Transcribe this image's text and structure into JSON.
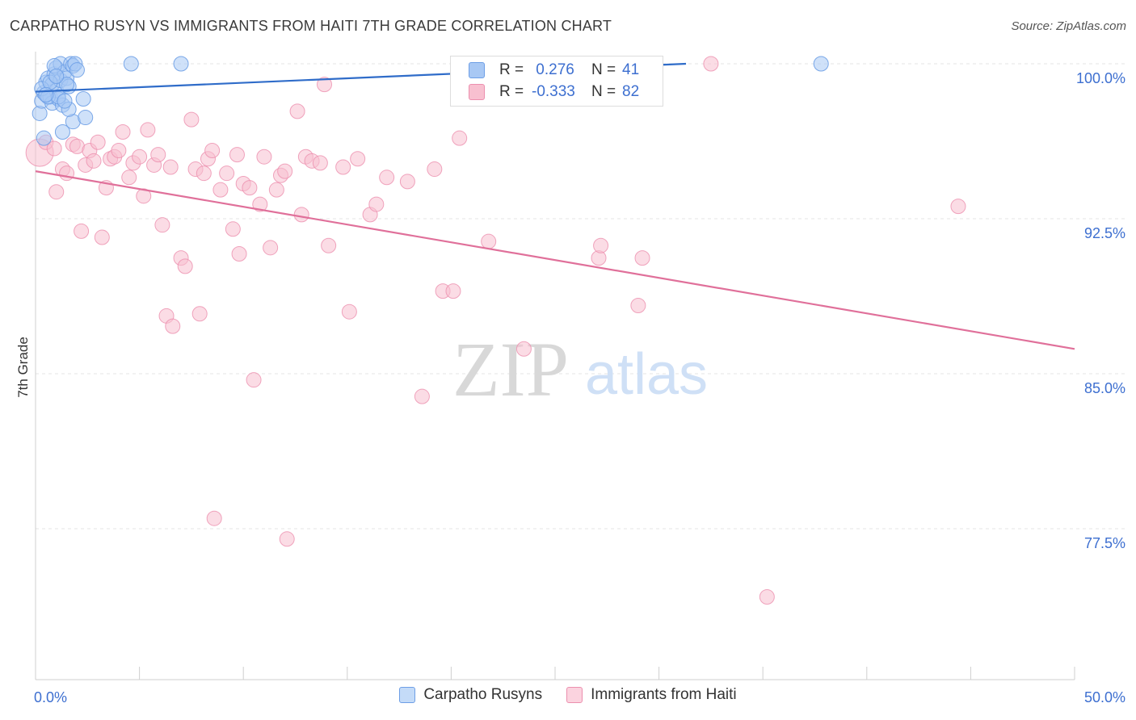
{
  "title": "CARPATHO RUSYN VS IMMIGRANTS FROM HAITI 7TH GRADE CORRELATION CHART",
  "source": "Source: ZipAtlas.com",
  "watermark": {
    "zip": "ZIP",
    "atlas": "atlas"
  },
  "legend": {
    "r_label": "R =",
    "n_label": "N =",
    "rows": [
      {
        "r": " 0.276",
        "n": "41"
      },
      {
        "r": "-0.333",
        "n": "82"
      }
    ]
  },
  "colors": {
    "blue_fill": "#a8c8f4",
    "blue_stroke": "#6d9ee6",
    "blue_line": "#2f6cc9",
    "pink_fill": "#f8c0d0",
    "pink_stroke": "#ec8fae",
    "pink_line": "#e0709a",
    "tick_label": "#3d6fd0",
    "grid": "#e4e4e4"
  },
  "chart_data": {
    "type": "scatter",
    "title": "CARPATHO RUSYN VS IMMIGRANTS FROM HAITI 7TH GRADE CORRELATION CHART",
    "xlabel": "",
    "ylabel": "7th Grade",
    "xlim": [
      0,
      50
    ],
    "ylim": [
      70.5,
      101.5
    ],
    "x_tick_labels": [
      {
        "value": 0,
        "label": "0.0%"
      },
      {
        "value": 50,
        "label": "50.0%"
      }
    ],
    "y_ticks": [
      {
        "value": 100.0,
        "label": "100.0%"
      },
      {
        "value": 92.5,
        "label": "92.5%"
      },
      {
        "value": 85.0,
        "label": "85.0%"
      },
      {
        "value": 77.5,
        "label": "77.5%"
      }
    ],
    "series": [
      {
        "name": "Carpatho Rusyns",
        "color": "blue",
        "r": 0.276,
        "n": 41,
        "trend": {
          "x": [
            0,
            31.3
          ],
          "y": [
            98.65,
            100.0
          ]
        },
        "points": [
          [
            0.2,
            97.6
          ],
          [
            0.3,
            98.2
          ],
          [
            0.4,
            98.6
          ],
          [
            0.5,
            99.1
          ],
          [
            0.5,
            98.5
          ],
          [
            0.6,
            99.3
          ],
          [
            0.7,
            98.4
          ],
          [
            0.8,
            99.0
          ],
          [
            0.8,
            98.1
          ],
          [
            0.9,
            99.5
          ],
          [
            1.0,
            98.7
          ],
          [
            1.0,
            99.8
          ],
          [
            1.1,
            98.3
          ],
          [
            1.2,
            99.2
          ],
          [
            1.2,
            100.0
          ],
          [
            1.3,
            98.0
          ],
          [
            1.4,
            99.6
          ],
          [
            1.5,
            99.3
          ],
          [
            1.6,
            98.9
          ],
          [
            1.7,
            100.0
          ],
          [
            1.8,
            99.9
          ],
          [
            1.9,
            100.0
          ],
          [
            2.0,
            99.7
          ],
          [
            1.3,
            96.7
          ],
          [
            1.8,
            97.2
          ],
          [
            2.3,
            98.3
          ],
          [
            2.4,
            97.4
          ],
          [
            0.4,
            96.4
          ],
          [
            4.6,
            100.0
          ],
          [
            7.0,
            100.0
          ],
          [
            37.8,
            100.0
          ],
          [
            0.3,
            98.8
          ],
          [
            0.6,
            98.4
          ],
          [
            1.1,
            98.4
          ],
          [
            1.6,
            97.8
          ],
          [
            0.9,
            99.9
          ],
          [
            1.5,
            99.0
          ],
          [
            0.7,
            99.1
          ],
          [
            1.4,
            98.2
          ],
          [
            0.5,
            98.5
          ],
          [
            1.0,
            99.4
          ]
        ]
      },
      {
        "name": "Immigrants from Haiti",
        "color": "pink",
        "r": -0.333,
        "n": 82,
        "trend": {
          "x": [
            0,
            50
          ],
          "y": [
            94.8,
            86.2
          ]
        },
        "points": [
          [
            0.2,
            95.7
          ],
          [
            0.5,
            96.2
          ],
          [
            0.9,
            95.9
          ],
          [
            1.0,
            93.8
          ],
          [
            1.3,
            94.9
          ],
          [
            1.5,
            94.7
          ],
          [
            1.8,
            96.1
          ],
          [
            2.0,
            96.0
          ],
          [
            2.2,
            91.9
          ],
          [
            2.4,
            95.1
          ],
          [
            2.6,
            95.8
          ],
          [
            2.8,
            95.3
          ],
          [
            3.0,
            96.2
          ],
          [
            3.2,
            91.6
          ],
          [
            3.4,
            94.0
          ],
          [
            3.6,
            95.4
          ],
          [
            3.8,
            95.5
          ],
          [
            4.0,
            95.8
          ],
          [
            4.2,
            96.7
          ],
          [
            4.5,
            94.5
          ],
          [
            4.7,
            95.2
          ],
          [
            5.0,
            95.5
          ],
          [
            5.2,
            93.6
          ],
          [
            5.4,
            96.8
          ],
          [
            5.7,
            95.1
          ],
          [
            5.9,
            95.6
          ],
          [
            6.1,
            92.2
          ],
          [
            6.3,
            87.8
          ],
          [
            6.5,
            95.0
          ],
          [
            6.6,
            87.3
          ],
          [
            7.0,
            90.6
          ],
          [
            7.2,
            90.2
          ],
          [
            7.5,
            97.3
          ],
          [
            7.7,
            94.9
          ],
          [
            7.9,
            87.9
          ],
          [
            8.1,
            94.7
          ],
          [
            8.3,
            95.4
          ],
          [
            8.5,
            95.8
          ],
          [
            8.6,
            78.0
          ],
          [
            8.9,
            93.9
          ],
          [
            9.2,
            94.7
          ],
          [
            9.5,
            92.0
          ],
          [
            9.7,
            95.6
          ],
          [
            9.8,
            90.8
          ],
          [
            10.0,
            94.2
          ],
          [
            10.3,
            94.0
          ],
          [
            10.5,
            84.7
          ],
          [
            10.8,
            93.2
          ],
          [
            11.0,
            95.5
          ],
          [
            11.3,
            91.1
          ],
          [
            11.6,
            93.9
          ],
          [
            11.8,
            94.6
          ],
          [
            12.0,
            94.8
          ],
          [
            12.1,
            77.0
          ],
          [
            12.6,
            97.7
          ],
          [
            12.8,
            92.7
          ],
          [
            13.0,
            95.5
          ],
          [
            13.3,
            95.3
          ],
          [
            13.7,
            95.2
          ],
          [
            13.9,
            99.0
          ],
          [
            14.1,
            91.2
          ],
          [
            14.8,
            95.0
          ],
          [
            15.1,
            88.0
          ],
          [
            15.5,
            95.4
          ],
          [
            16.1,
            92.7
          ],
          [
            16.4,
            93.2
          ],
          [
            16.9,
            94.5
          ],
          [
            17.9,
            94.3
          ],
          [
            18.6,
            83.9
          ],
          [
            19.2,
            94.9
          ],
          [
            19.6,
            89.0
          ],
          [
            20.1,
            89.0
          ],
          [
            20.4,
            96.4
          ],
          [
            21.8,
            91.4
          ],
          [
            23.5,
            86.2
          ],
          [
            27.1,
            90.6
          ],
          [
            27.2,
            91.2
          ],
          [
            29.0,
            88.3
          ],
          [
            29.2,
            90.6
          ],
          [
            32.5,
            100.0
          ],
          [
            35.2,
            74.2
          ],
          [
            44.4,
            93.1
          ]
        ]
      }
    ]
  },
  "bottom_legend": [
    "Carpatho Rusyns",
    "Immigrants from Haiti"
  ]
}
